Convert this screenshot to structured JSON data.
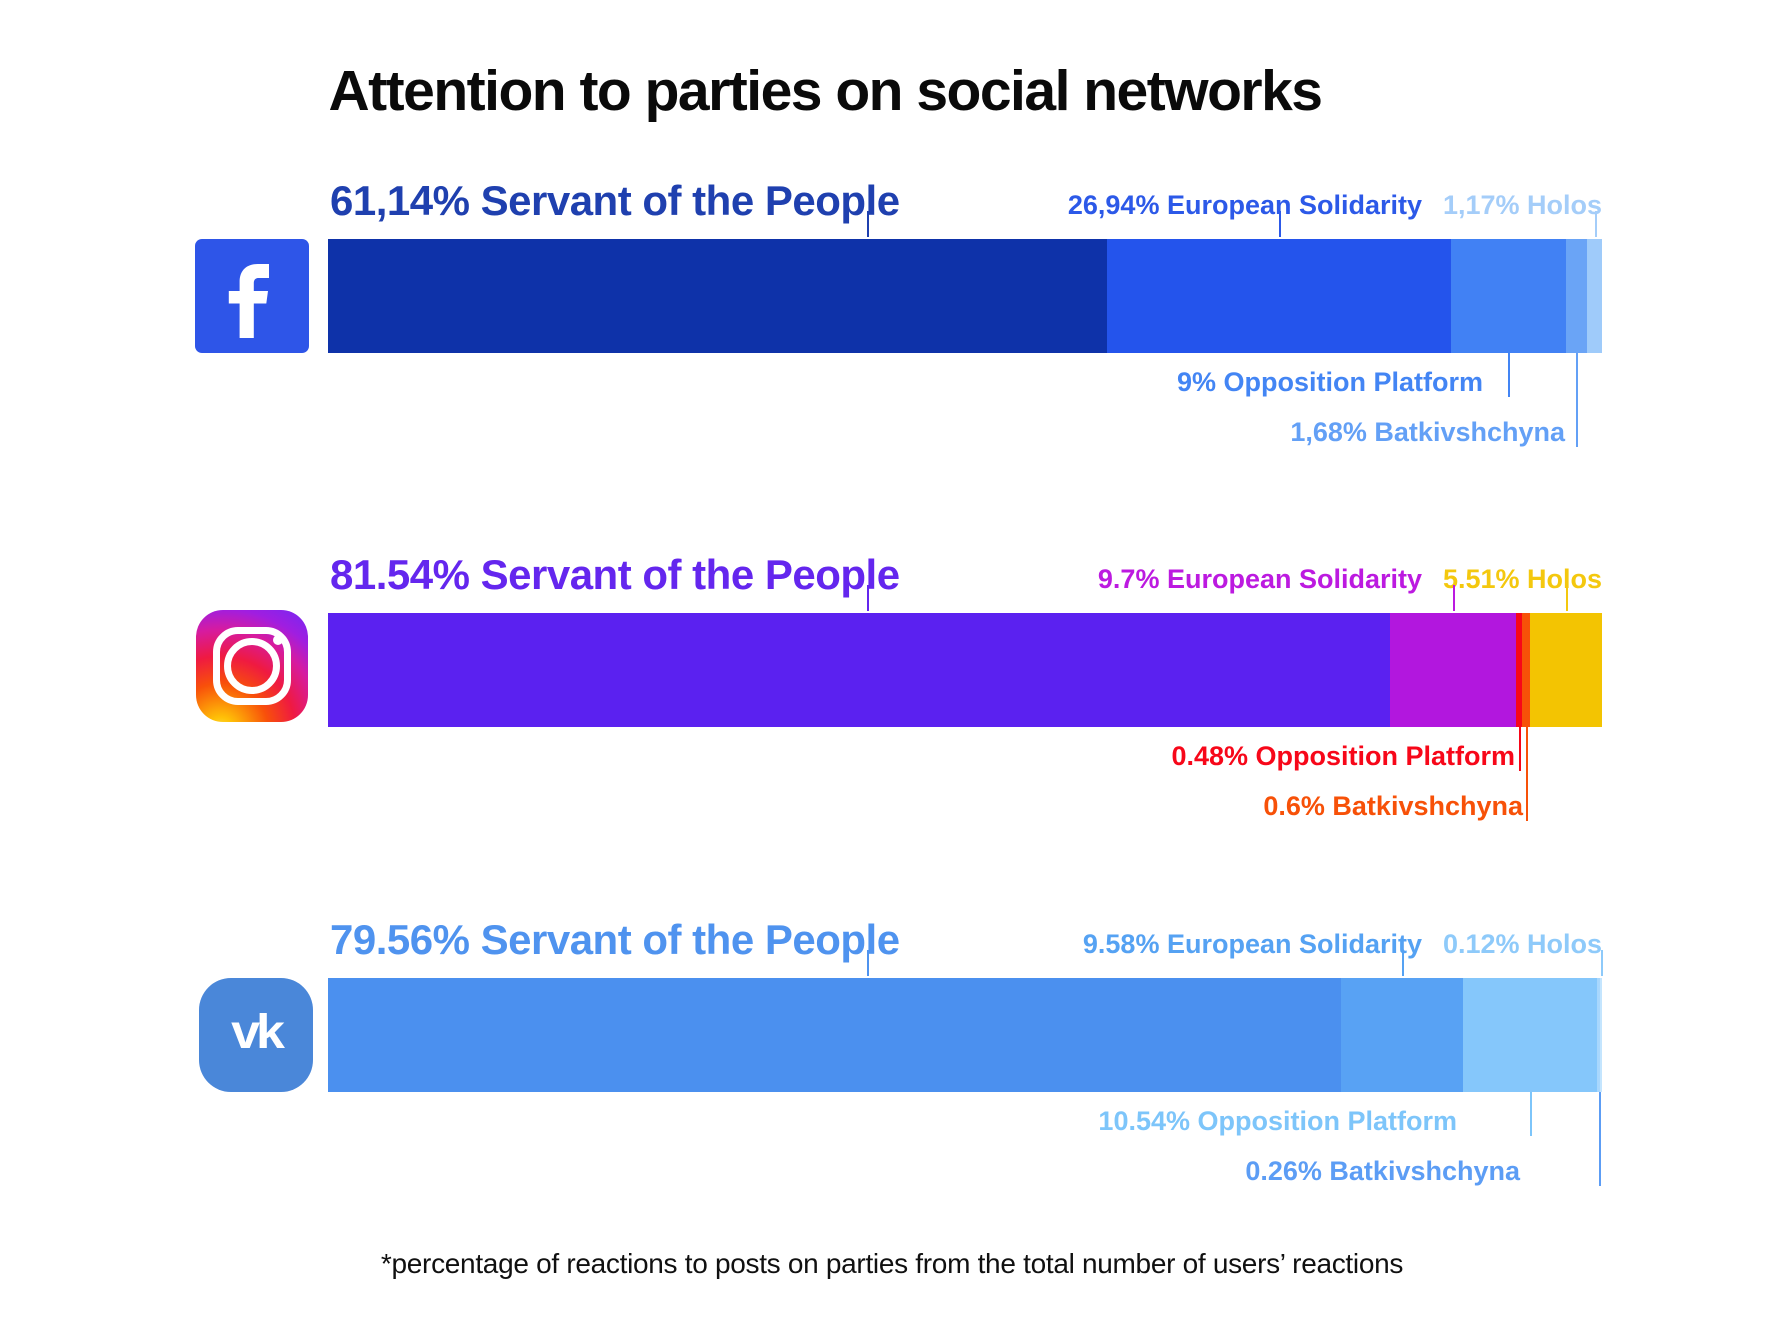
{
  "chart_data": {
    "type": "bar",
    "orientation": "horizontal-stacked",
    "title": "Attention to parties on social networks",
    "footnote": "*percentage of reactions to posts on parties from the total number of users’ reactions",
    "unit": "%",
    "legend_position": "labels-on-bars",
    "grid": false,
    "rows": [
      {
        "platform": "Facebook",
        "icon": "facebook-icon",
        "icon_color": "#2e55e8",
        "segments": [
          {
            "party": "Servant of the People",
            "value": 61.14,
            "label": "61,14% Servant of the People",
            "color": "#0e32a9",
            "label_color": "#1f40af"
          },
          {
            "party": "European Solidarity",
            "value": 26.94,
            "label": "26,94% European Solidarity",
            "color": "#2454ec",
            "label_color": "#2c59e8"
          },
          {
            "party": "Opposition Platform",
            "value": 9,
            "label": "9% Opposition Platform",
            "color": "#4181f4",
            "label_color": "#4385f4"
          },
          {
            "party": "Batkivshchyna",
            "value": 1.68,
            "label": "1,68% Batkivshchyna",
            "color": "#6aa4f6",
            "label_color": "#63a0f6"
          },
          {
            "party": "Holos",
            "value": 1.17,
            "label": "1,17% Holos",
            "color": "#9fcbfa",
            "label_color": "#a4cdf9"
          }
        ]
      },
      {
        "platform": "Instagram",
        "icon": "instagram-icon",
        "icon_color": "#d61ba0",
        "segments": [
          {
            "party": "Servant of the People",
            "value": 81.54,
            "label": "81.54% Servant of the People",
            "color": "#5b21f0",
            "label_color": "#6426ee"
          },
          {
            "party": "European Solidarity",
            "value": 9.7,
            "label": "9.7% European Solidarity",
            "color": "#b217de",
            "label_color": "#bc1ae0"
          },
          {
            "party": "Opposition Platform",
            "value": 0.48,
            "label": "0.48% Opposition Platform",
            "color": "#f70719",
            "label_color": "#f70719"
          },
          {
            "party": "Batkivshchyna",
            "value": 0.6,
            "label": "0.6% Batkivshchyna",
            "color": "#f75108",
            "label_color": "#f75108"
          },
          {
            "party": "Holos",
            "value": 5.51,
            "label": "5.51% Holos",
            "color": "#f3c402",
            "label_color": "#f4c80e"
          }
        ]
      },
      {
        "platform": "VK",
        "icon": "vk-icon",
        "icon_color": "#4a87d9",
        "segments": [
          {
            "party": "Servant of the People",
            "value": 79.56,
            "label": "79.56% Servant of the People",
            "color": "#4b90ef",
            "label_color": "#4f93ef"
          },
          {
            "party": "European Solidarity",
            "value": 9.58,
            "label": "9.58% European Solidarity",
            "color": "#58a2f4",
            "label_color": "#55a2f3"
          },
          {
            "party": "Opposition Platform",
            "value": 10.54,
            "label": "10.54% Opposition Platform",
            "color": "#85c7fb",
            "label_color": "#7dc5fa"
          },
          {
            "party": "Batkivshchyna",
            "value": 0.26,
            "label": "0.26% Batkivshchyna",
            "color": "#a8d7fd",
            "label_color": "#5c9df5"
          },
          {
            "party": "Holos",
            "value": 0.12,
            "label": "0.12% Holos",
            "color": "#c4e5fe",
            "label_color": "#8ecafa"
          }
        ]
      }
    ]
  },
  "icons": {
    "facebook_glyph": "f",
    "vk_glyph": "vk"
  }
}
